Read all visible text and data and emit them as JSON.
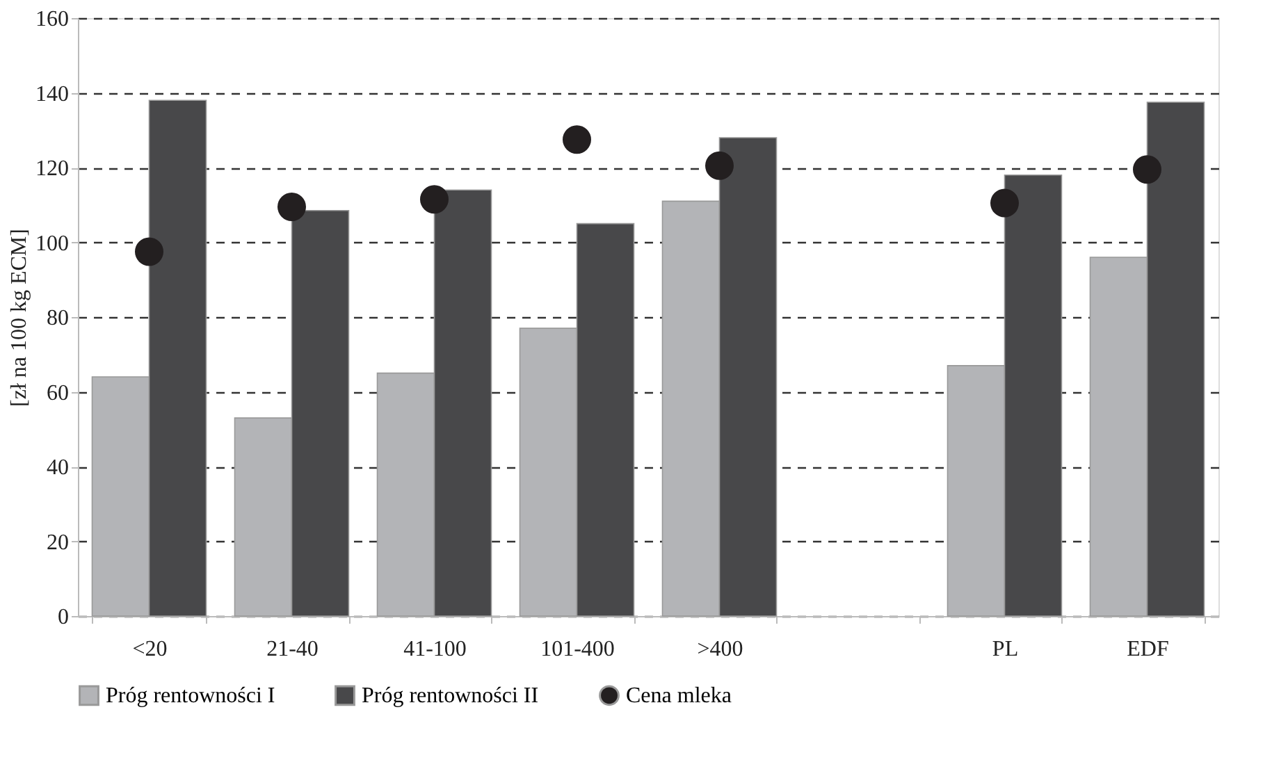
{
  "chart_data": {
    "type": "bar",
    "ylabel": "[zł na 100 kg ECM]",
    "categories": [
      "<20",
      "21-40",
      "41-100",
      "101-400",
      ">400",
      null,
      "PL",
      "EDF"
    ],
    "series": [
      {
        "name": "Próg rentowności I",
        "color": "#b3b4b7",
        "values": [
          64,
          53,
          65,
          77,
          111,
          null,
          67,
          96
        ]
      },
      {
        "name": "Próg rentowności II",
        "color": "#48484a",
        "values": [
          138,
          108.5,
          114,
          105,
          128,
          null,
          118,
          137.5
        ]
      },
      {
        "name": "Cena mleka",
        "type": "scatter",
        "marker": "circle",
        "color": "#231f20",
        "values": [
          97.5,
          109.5,
          111.5,
          127.5,
          120.5,
          null,
          110.5,
          119.5
        ]
      }
    ],
    "ylim": [
      0,
      160
    ],
    "yticks": [
      0,
      20,
      40,
      60,
      80,
      100,
      120,
      140,
      160
    ],
    "grid": "y",
    "legend": "bottom"
  }
}
